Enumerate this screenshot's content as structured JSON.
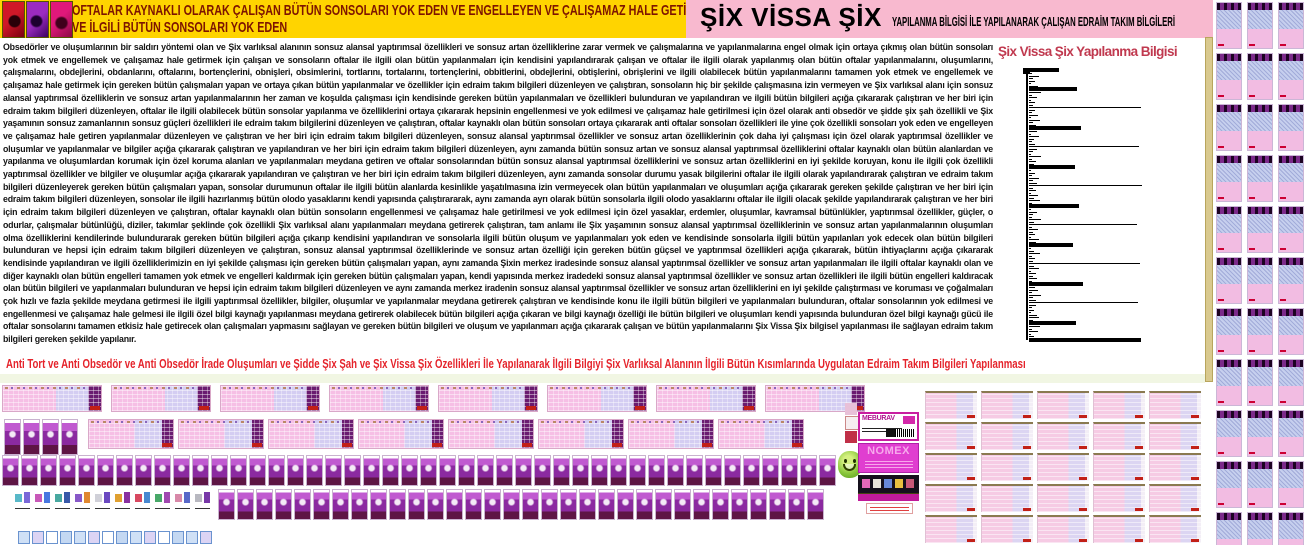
{
  "banner": {
    "line1": "OFTALAR KAYNAKLI OLARAK ÇALIŞAN BÜTÜN SONSOLARI YOK EDEN VE ENGELLEYEN VE ÇALIŞAMAZ HALE GETİREN",
    "line2": "VE İLGİLİ BÜTÜN SONSOLARI YOK EDEN"
  },
  "header": {
    "title_main": "ŞİX VİSSA ŞİX",
    "title_sub": "YAPILANMA BİLGİSİ İLE YAPILANARAK ÇALIŞAN EDRAİM TAKIM BİLGİLERİ"
  },
  "paragraph_lines": [
    "Obsedörler ve oluşumlarının bir saldırı yöntemi olan ve Şix varlıksal alanının sonsuz alansal yaptırımsal özellikleri ve sonsuz artan özelliklerine zarar vermek ve çalışmalarına ve yapılanmalarına engel olmak için ortaya çıkmış olan bütün sonsoları",
    "yok etmek ve engellemek ve çalışamaz hale getirmek için çalışan ve sonsoların oftalar ile ilgili olan bütün yapılanmaları için kendisini yapılandırarak çalışan ve oftalar ile ilgili olarak yapılanmış olan bütün oftalar yapılanmalarını, oluşumlarını,",
    "çalışmalarını, obdejlerini, obdanlarını, oftalarını, bortençlerini, obnişleri, obsimlerini, tortlarını, tortalarını, tortençlerini, obbitlerini, obdejlerini, obtişlerini, obrişlerini ve ilgili olabilecek bütün yapılanmalarını tamamen yok etmek ve engellemek ve",
    "çalışamaz hale getirmek için gereken bütün çalışmaları yapan ve ortaya çıkan bütün yapılanmalar ve özellikler için edraim takım bilgileri düzenleyen ve çalıştıran, sonsoların hiç bir şekilde çalışmasına izin vermeyen ve Şix varlıksal alanı için sonsuz",
    "alansal yaptırımsal özelliklerin ve sonsuz artan yapılanmalarının her zaman ve koşulda çalışması için kendisinde gereken bütün yapılanmaları ve özellikleri bulunduran ve yapılandıran ve ilgili bütün bilgileri açığa çıkararak çalıştıran ve her biri için",
    "edraim takım bilgileri düzenleyen, oftalar ile ilgili olabilecek bütün sonsolar yapılanma ve özelliklerini ortaya çıkararak hepsinin engellenmesi ve yok edilmesi ve çalışamaz hale getirilmesi için özel olarak anti obsedör ve şidde şix şah özellikli ve Şix",
    "yaşamının sonsuz zamanlarının sonsuz güçleri özellikleri ile edraim takım bilgilerini düzenleyen ve çalıştıran, oftalar kaynaklı olan bütün sonsoları ortaya çıkararak anti oftalar sonsoları özellikleri ile yine çok özellikli sonsoları yok eden ve engelleyen",
    "ve çalışamaz hale getiren yapılanmalar düzenleyen ve çalıştıran ve her biri için edraim takım bilgileri düzenleyen, sonsuz alansal yaptırımsal özellikler ve sonsuz artan özelliklerinin çok daha iyi çalışması için özel olarak yaptırımsal özellikler ve",
    "oluşumlar ve yapılanmalar ve bilgiler açığa çıkararak çalıştıran ve yapılandıran ve her biri için edraim takım bilgileri düzenleyen, aynı zamanda bütün sonsuz artan ve sonsuz alansal yaptırımsal özelliklerini oftalar kaynaklı olan bütün alanlardan ve",
    "yapılanma ve oluşumlardan korumak için özel koruma alanları ve yapılanmaları meydana getiren ve oftalar sonsolarından bütün sonsuz alansal yaptırımsal özelliklerini ve sonsuz artan özelliklerini en iyi şekilde koruyan, konu ile ilgili çok özellikli",
    "yaptırımsal özellikler ve bilgiler ve oluşumlar açığa çıkararak yapılandıran ve çalıştıran ve her biri için edraim takım bilgileri düzenleyen, aynı zamanda sonsolar durumu yasak bilgilerini oftalar ile ilgili olarak yapılandırarak çalıştıran ve edraim",
    "takım bilgileri düzenleyerek gereken bütün çalışmaları yapan, sonsolar durumunun oftalar ile ilgili bütün alanlarda kesinlikle yaşatılmasına izin vermeyecek olan bütün yapılanmaları ve oluşumları açığa çıkararak gereken şekilde çalıştıran ve her",
    "biri için edraim takım bilgileri düzenleyen, sonsolar ile ilgili hazırlanmış bütün olodo yasaklarını kendi yapısında çalıştırararak, aynı zamanda ayrı olarak bütün sonsolarla ilgili olodo yasaklarını oftalar ile ilgili olacak şekilde yapılandırarak çalıştıran ve",
    "her biri için edraim takım bilgileri düzenleyen ve çalıştıran, oftalar kaynaklı olan bütün sonsoların engellenmesi ve çalışamaz hale getirilmesi ve yok edilmesi için özel yasaklar, erdemler, oluşumlar, kavramsal bütünlükler, yaptırımsal özellikler,",
    "güçler, o odurlar, çalışmalar bütünlüğü, diziler, takımlar şeklinde çok özellikli Şix varlıksal alanı yapılanmaları meydana getirerek çalıştıran, tam anlamı ile Şix yaşamının sonsuz alansal yaptırımsal özelliklerinin ve sonsuz artan yapılanmalarının",
    "oluşumları olma özelliklerini kendilerinde bulundurarak gereken bütün bilgileri açığa çıkarıp kendisini yapılandıran ve sonsolarla ilgili bütün oluşum ve yapılanmaları yok eden ve kendisinde sonsolarla ilgili bütün yapılanları yok edecek olan bütün",
    "bilgileri bulunduran ve hepsi için edraim takım bilgileri düzenleyen ve çalıştıran, sonsuz alansal yaptırımsal özelliklerinde ve sonsuz artan özelliği için gereken bütün güçsel ve yaptırımsal özellikleri açığa çıkararak, bütün ihtiyaçlarını açığa çıkararak",
    "kendisinde yapılandıran ve ilgili özelliklerimizin en iyi şekilde çalışması için gereken bütün çalışmaları yapan, aynı zamanda Şixin merkez iradesinde sonsuz alansal yaptırımsal özellikler ve sonsuz artan yapılanmaları ile ilgili oftalar kaynaklı olan ve",
    "diğer kaynaklı olan bütün engelleri tamamen yok etmek ve engelleri kaldırmak için gereken bütün çalışmaları yapan, kendi yapısında merkez iradedeki sonsuz alansal yaptırımsal özellikler ve sonsuz artan özellikleri ile ilgili bütün engelleri",
    "kaldıracak olan bütün bilgileri ve yapılanmaları bulunduran ve hepsi için edraim takım bilgileri düzenleyen ve aynı zamanda merkez iradenin sonsuz alansal yaptırımsal özellikler ve sonsuz artan özelliklerini en iyi şekilde çalıştırması ve koruması ve",
    "çoğalmaları çok hızlı ve fazla şekilde meydana getirmesi ile ilgili yaptırımsal özellikler, bilgiler, oluşumlar ve yapılanmalar meydana getirerek çalıştıran ve kendisinde konu ile ilgili bütün bilgileri ve yapılanmaları bulunduran, oftalar sonsolarının yok",
    "edilmesi ve engellenmesi ve çalışamaz hale gelmesi ile ilgili özel bilgi kaynağı yapılanması meydana getirerek olabilecek bütün bilgileri açığa çıkaran ve bilgi kaynağı özelliği ile bütün bilgileri ve oluşumları kendi yapısında bulunduran özel bilgi",
    "kaynağı gücü ile oftalar sonsolarını tamamen etkisiz hale getirecek olan çalışmaları yapmasını sağlayan ve gereken bütün bilgileri ve oluşum ve yapılanmarı açığa çıkararak çalışan ve bütün yapılanmalarını Şix Vissa Şix bilgisel yapılanması ile",
    "sağlayan edraim takım bilgileri gereken şekilde yapılanır."
  ],
  "chart_data": {
    "type": "bar",
    "orientation": "horizontal",
    "title": "Şix Vissa Şix Yapılanma Bilgisi",
    "xlabel": "",
    "ylabel": "",
    "xlim": [
      0,
      115
    ],
    "grid": false,
    "legend": "none",
    "values": [
      30,
      7,
      3,
      10,
      4,
      6,
      2,
      9,
      48,
      5,
      12,
      3,
      8,
      2,
      6,
      4,
      112,
      6,
      3,
      9,
      2,
      11,
      4,
      7,
      52,
      3,
      8,
      2,
      10,
      5,
      3,
      6,
      110,
      8,
      4,
      2,
      12,
      3,
      7,
      5,
      46,
      9,
      2,
      6,
      3,
      10,
      4,
      8,
      113,
      4,
      7,
      2,
      9,
      5,
      11,
      3,
      50,
      6,
      2,
      8,
      4,
      3,
      12,
      5,
      108,
      3,
      9,
      4,
      6,
      2,
      10,
      7,
      44,
      8,
      2,
      5,
      11,
      3,
      6,
      4,
      111,
      5,
      10,
      2,
      7,
      4,
      8,
      3,
      54,
      2,
      6,
      9,
      3,
      12,
      4,
      7,
      109,
      7,
      3,
      5,
      2,
      8,
      10,
      4,
      47,
      6,
      11,
      3,
      9,
      2,
      5,
      112
    ],
    "thick_indices": [
      0,
      8,
      24,
      40,
      56,
      72,
      88,
      104,
      111
    ],
    "bar_color": "#000000"
  },
  "footer_line": "Anti Tort ve Anti Obsedör ve Anti Obsedör İrade Oluşumları ve Şidde Şix Şah ve Şix Vissa Şix Özellikleri İle Yapılanarak İlgili Bilgiyi Şix Varlıksal Alanının İlgili Bütün Kısımlarında Uygulatan Edraim Takım Bilgileri Yapılanması",
  "stack": {
    "meburav_label": "MEBURAV",
    "nomex_label": "NOMEX"
  },
  "colors": {
    "banner_yellow": "#ffd400",
    "banner_text": "#7d1400",
    "header_pink": "#f8b9cf",
    "chart_title_red": "#c0394f",
    "footer_red": "#e5232b",
    "tan_strip": "#d9c98e",
    "magenta_accent": "#e03ed0",
    "thumb_pink": "#f6bfe5",
    "thumb_lilac": "#d4cdf2",
    "thumb_purple": "#8b2aa0"
  }
}
